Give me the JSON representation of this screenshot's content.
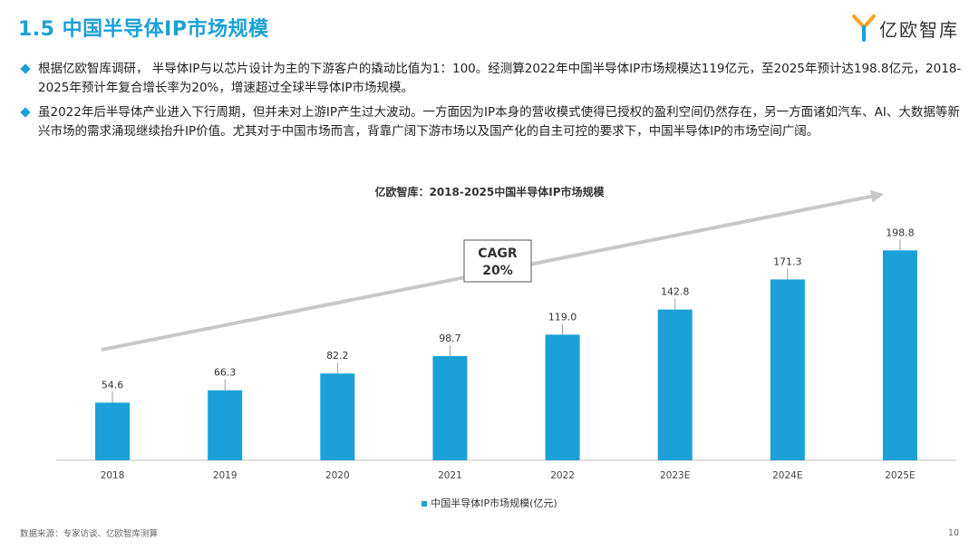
{
  "page": {
    "title": "1.5 中国半导体IP市场规模",
    "logo_text": "亿欧智库",
    "bullets": [
      "根据亿欧智库调研， 半导体IP与以芯片设计为主的下游客户的撬动比值为1：100。经测算2022年中国半导体IP市场规模达119亿元，至2025年预计达198.8亿元，2018-2025年预计年复合增长率为20%，增速超过全球半导体IP市场规模。",
      "虽2022年后半导体产业进入下行周期，但并未对上游IP产生过大波动。一方面因为IP本身的营收模式使得已授权的盈利空间仍然存在，另一方面诸如汽车、AI、大数据等新兴市场的需求涌现继续抬升IP价值。尤其对于中国市场而言，背靠广阔下游市场以及国产化的自主可控的要求下，中国半导体IP的市场空间广阔。"
    ],
    "source": "数据来源：专家访谈、亿欧智库测算",
    "page_number": "10"
  },
  "chart_data": {
    "type": "bar",
    "title": "亿欧智库：2018-2025中国半导体IP市场规模",
    "categories": [
      "2018",
      "2019",
      "2020",
      "2021",
      "2022",
      "2023E",
      "2024E",
      "2025E"
    ],
    "series": [
      {
        "name": "中国半导体IP市场规模(亿元)",
        "values": [
          54.6,
          66.3,
          82.2,
          98.7,
          119.0,
          142.8,
          171.3,
          198.8
        ]
      }
    ],
    "value_labels": [
      "54.6",
      "66.3",
      "82.2",
      "98.7",
      "119.0",
      "142.8",
      "171.3",
      "198.8"
    ],
    "annotation": {
      "line1": "CAGR",
      "line2": "20%"
    },
    "ylim": [
      0,
      230
    ],
    "colors": {
      "bar": "#1BA0D7",
      "arrow": "#C8C8C8",
      "axis": "#BFBFBF"
    },
    "grid": false,
    "legend_position": "bottom"
  }
}
